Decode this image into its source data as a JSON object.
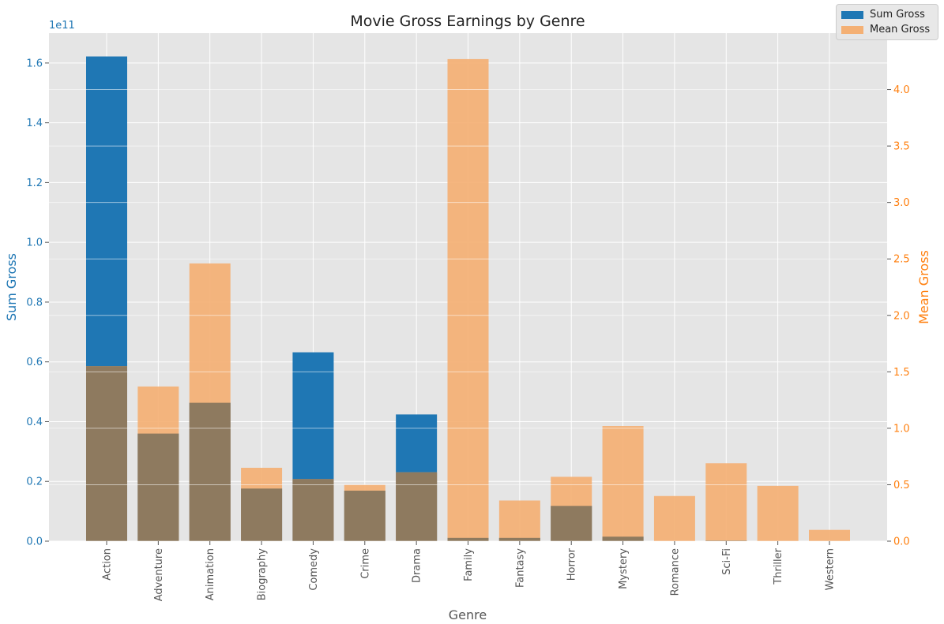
{
  "chart_data": {
    "type": "bar",
    "title": "Movie Gross Earnings by Genre",
    "xlabel": "Genre",
    "categories": [
      "Action",
      "Adventure",
      "Animation",
      "Biography",
      "Comedy",
      "Crime",
      "Drama",
      "Family",
      "Fantasy",
      "Horror",
      "Mystery",
      "Romance",
      "Sci-Fi",
      "Thriller",
      "Western"
    ],
    "series": [
      {
        "name": "Sum Gross",
        "axis": "left",
        "color": "#1f77b4",
        "values": [
          162200000000,
          36000000000,
          46300000000,
          17600000000,
          63200000000,
          16900000000,
          42400000000,
          1100000000,
          1100000000,
          11800000000,
          1500000000,
          100000000,
          200000000,
          100000000,
          100000000
        ]
      },
      {
        "name": "Mean Gross",
        "axis": "right",
        "color": "#f4b074",
        "values": [
          1.55,
          1.37,
          2.46,
          0.65,
          0.55,
          0.5,
          0.61,
          4.27,
          0.36,
          0.57,
          1.02,
          0.4,
          0.69,
          0.49,
          0.1
        ]
      }
    ],
    "left_axis": {
      "label": "Sum Gross",
      "color": "#1f77b4",
      "offset_text": "1e11",
      "ylim": [
        0,
        170000000000
      ],
      "ticks": [
        0,
        20000000000,
        40000000000,
        60000000000,
        80000000000,
        100000000000,
        120000000000,
        140000000000,
        160000000000
      ],
      "tick_labels": [
        "0.0",
        "0.2",
        "0.4",
        "0.6",
        "0.8",
        "1.0",
        "1.2",
        "1.4",
        "1.6"
      ]
    },
    "right_axis": {
      "label": "Mean Gross",
      "color": "#ff7f0e",
      "ylim": [
        0,
        4.5
      ],
      "ticks": [
        0,
        0.5,
        1.0,
        1.5,
        2.0,
        2.5,
        3.0,
        3.5,
        4.0
      ],
      "tick_labels": [
        "0.0",
        "0.5",
        "1.0",
        "1.5",
        "2.0",
        "2.5",
        "3.0",
        "3.5",
        "4.0"
      ]
    },
    "grid": true,
    "legend_position": "top-right"
  }
}
